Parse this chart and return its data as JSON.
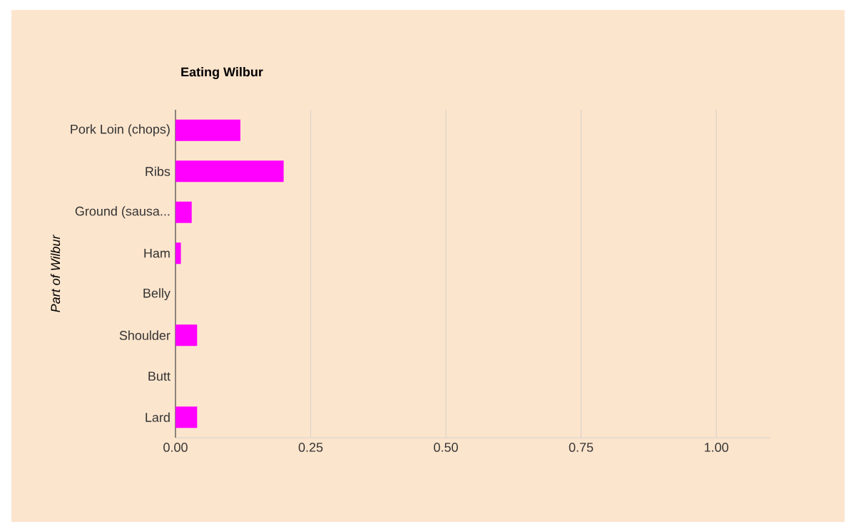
{
  "chart_data": {
    "type": "bar",
    "orientation": "horizontal",
    "title": "Eating Wilbur",
    "ylabel": "Part of Wilbur",
    "categories": [
      "Pork Loin (chops)",
      "Ribs",
      "Ground (sausa...",
      "Ham",
      "Belly",
      "Shoulder",
      "Butt",
      "Lard"
    ],
    "values": [
      0.12,
      0.2,
      0.03,
      0.01,
      0,
      0.04,
      0,
      0.04
    ],
    "color": "#ff00ff",
    "xlim": [
      0,
      1.1
    ],
    "xticks": [
      {
        "value": 0,
        "label": "0.00"
      },
      {
        "value": 0.25,
        "label": "0.25"
      },
      {
        "value": 0.5,
        "label": "0.50"
      },
      {
        "value": 0.75,
        "label": "0.75"
      },
      {
        "value": 1,
        "label": "1.00"
      }
    ],
    "grid": "x"
  }
}
